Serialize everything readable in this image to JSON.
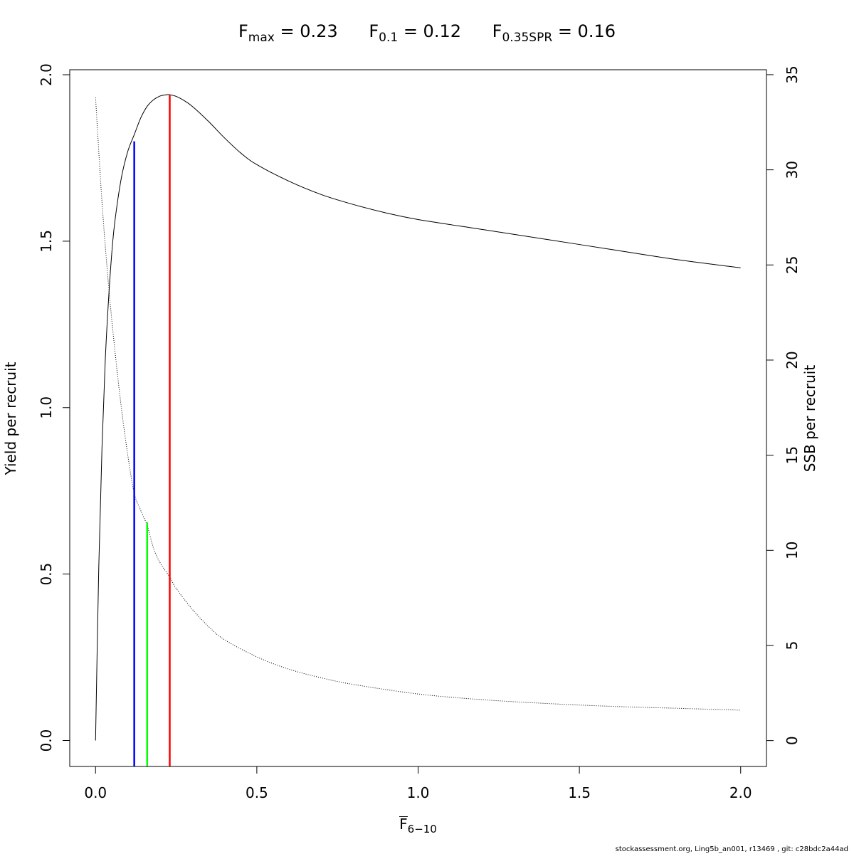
{
  "title": {
    "fmax": {
      "symbol": "F",
      "sub": "max",
      "text": "= 0.23"
    },
    "f01": {
      "symbol": "F",
      "sub": "0.1",
      "text": "= 0.12"
    },
    "fspr": {
      "symbol": "F",
      "sub": "0.35SPR",
      "text": "= 0.16"
    }
  },
  "xlabel": {
    "symbol": "F",
    "sub": "6−10"
  },
  "footer": "stockassessment.org, Ling5b_an001, r13469 , git: c28bdc2a44ad",
  "chart_data": {
    "type": "line",
    "xlabel": "F̅ 6−10",
    "ylabel": "Yield per recruit",
    "y2label": "SSB per recruit",
    "xlim": [
      -0.08,
      2.08
    ],
    "ylim": [
      -0.078,
      2.015
    ],
    "y2lim": [
      -1.36,
      35.26
    ],
    "xticks": [
      "0.0",
      "0.5",
      "1.0",
      "1.5",
      "2.0"
    ],
    "xtick_values": [
      0,
      0.5,
      1.0,
      1.5,
      2.0
    ],
    "yticks": [
      "0.0",
      "0.5",
      "1.0",
      "1.5",
      "2.0"
    ],
    "ytick_values": [
      0,
      0.5,
      1.0,
      1.5,
      2.0
    ],
    "y2ticks": [
      "0",
      "5",
      "10",
      "15",
      "20",
      "25",
      "30",
      "35"
    ],
    "y2tick_values": [
      0,
      5,
      10,
      15,
      20,
      25,
      30,
      35
    ],
    "grid": false,
    "series": [
      {
        "style": "solid",
        "color": "#000000",
        "axis": "left",
        "x": [
          0,
          0.01,
          0.02,
          0.03,
          0.04,
          0.05,
          0.06,
          0.08,
          0.1,
          0.12,
          0.14,
          0.16,
          0.18,
          0.2,
          0.22,
          0.23,
          0.25,
          0.27,
          0.3,
          0.35,
          0.4,
          0.45,
          0.5,
          0.6,
          0.7,
          0.8,
          0.9,
          1.0,
          1.2,
          1.4,
          1.6,
          1.8,
          2.0
        ],
        "y": [
          0.0,
          0.52,
          0.88,
          1.14,
          1.32,
          1.46,
          1.56,
          1.69,
          1.77,
          1.82,
          1.87,
          1.905,
          1.925,
          1.936,
          1.94,
          1.94,
          1.935,
          1.925,
          1.905,
          1.86,
          1.81,
          1.765,
          1.73,
          1.68,
          1.64,
          1.61,
          1.585,
          1.565,
          1.535,
          1.505,
          1.475,
          1.445,
          1.42
        ]
      },
      {
        "style": "dotted",
        "color": "#000000",
        "axis": "right",
        "x": [
          0,
          0.02,
          0.04,
          0.06,
          0.08,
          0.1,
          0.12,
          0.14,
          0.16,
          0.18,
          0.2,
          0.23,
          0.25,
          0.3,
          0.35,
          0.4,
          0.5,
          0.6,
          0.7,
          0.8,
          1.0,
          1.2,
          1.4,
          1.6,
          1.8,
          2.0
        ],
        "y": [
          33.8,
          28.3,
          24.0,
          20.5,
          17.5,
          15.0,
          13.0,
          12.1,
          11.3,
          10.1,
          9.35,
          8.6,
          8.0,
          6.9,
          6.0,
          5.3,
          4.4,
          3.75,
          3.3,
          2.95,
          2.45,
          2.15,
          1.95,
          1.8,
          1.7,
          1.6
        ]
      }
    ],
    "reference_lines": [
      {
        "name": "F0.1",
        "x": 0.12,
        "y_top": 1.8,
        "color": "#0000ff"
      },
      {
        "name": "F0.35SPR",
        "x": 0.16,
        "y_top": 0.655,
        "color": "#00ff00"
      },
      {
        "name": "Fmax",
        "x": 0.23,
        "y_top": 1.94,
        "color": "#ff0000"
      }
    ]
  }
}
